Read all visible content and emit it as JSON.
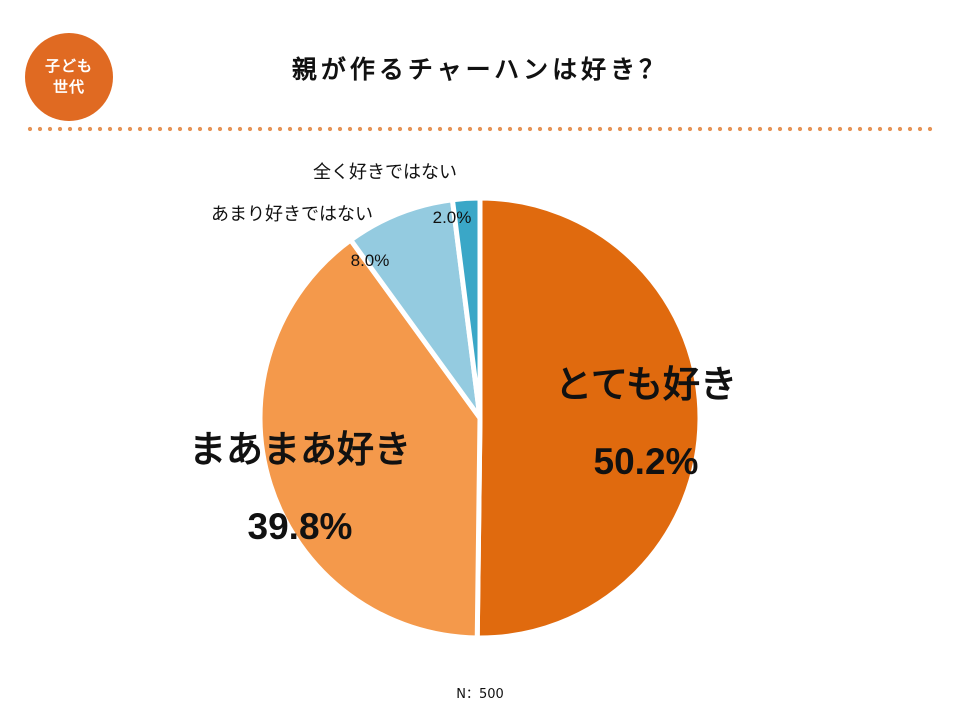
{
  "badge": {
    "line1": "子ども",
    "line2": "世代"
  },
  "title": "親が作るチャーハンは好き？",
  "footnote": "N：500",
  "chart_data": {
    "type": "pie",
    "title": "親が作るチャーハンは好き？",
    "slices": [
      {
        "label": "とても好き",
        "value": 50.2,
        "value_label": "50.2%",
        "color": "#e06a0e"
      },
      {
        "label": "まあまあ好き",
        "value": 39.8,
        "value_label": "39.8%",
        "color": "#f4994b"
      },
      {
        "label": "あまり好きではない",
        "value": 8.0,
        "value_label": "8.0%",
        "color": "#94cbe0"
      },
      {
        "label": "全く好きではない",
        "value": 2.0,
        "value_label": "2.0%",
        "color": "#3aa7c7"
      }
    ],
    "start": "top",
    "direction": "clockwise",
    "n": 500
  }
}
